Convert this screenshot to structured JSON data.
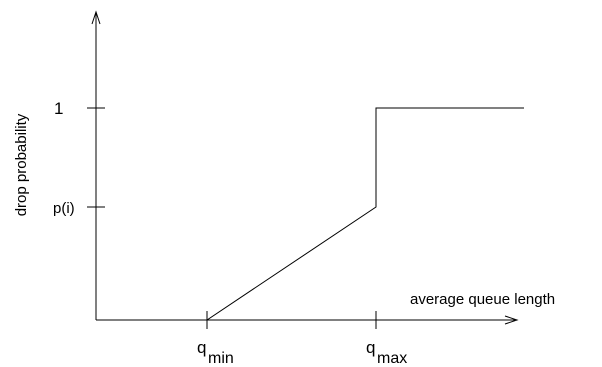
{
  "chart_data": {
    "type": "line",
    "xlabel": "average queue length",
    "ylabel": "drop probability",
    "x_ticks": [
      {
        "base": "q",
        "sub": "min",
        "at": "q_min"
      },
      {
        "base": "q",
        "sub": "max",
        "at": "q_max"
      }
    ],
    "y_ticks": [
      {
        "label": "1",
        "value": 1
      },
      {
        "label": "p(i)",
        "value": "p(i)"
      }
    ],
    "series": [
      {
        "points": [
          {
            "x": 0,
            "y": 0
          },
          {
            "x": "q_min",
            "y": 0
          },
          {
            "x": "q_max",
            "y": "p(i)"
          },
          {
            "x": "q_max",
            "y": 1
          },
          {
            "x": "beyond q_max",
            "y": 1
          }
        ]
      }
    ],
    "grid": false,
    "legend": "none",
    "colors": {
      "line": "#000000",
      "background": "#ffffff"
    }
  }
}
